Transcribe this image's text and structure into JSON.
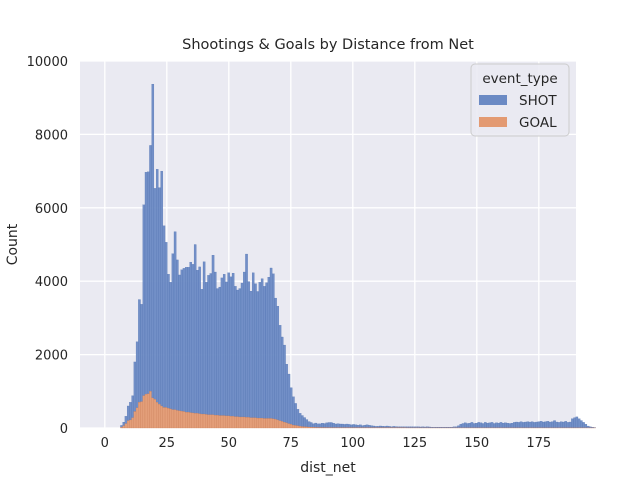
{
  "chart_data": {
    "type": "histogram",
    "title": "Shootings & Goals by Distance from Net",
    "xlabel": "dist_net",
    "ylabel": "Count",
    "xlim": [
      -10,
      190
    ],
    "ylim": [
      0,
      10000
    ],
    "xticks": [
      0,
      25,
      50,
      75,
      100,
      125,
      150,
      175
    ],
    "yticks": [
      0,
      2000,
      4000,
      6000,
      8000,
      10000
    ],
    "grid": true,
    "stacked": true,
    "legend": {
      "title": "event_type",
      "position": "top-right"
    },
    "colors": {
      "SHOT": "#6b8ac4",
      "GOAL": "#e39a72",
      "background": "#eaeaf2",
      "grid": "#ffffff"
    },
    "bin_width": 0.9,
    "bin_start": 0,
    "series": [
      {
        "name": "SHOT",
        "values": [
          0,
          0,
          0,
          0,
          0,
          0,
          0,
          50,
          100,
          200,
          400,
          480,
          600,
          1350,
          1800,
          2800,
          2650,
          5200,
          6050,
          6050,
          6700,
          8550,
          5750,
          6350,
          5900,
          6400,
          4950,
          4500,
          3650,
          3450,
          4250,
          4850,
          4100,
          3700,
          3850,
          3900,
          3950,
          3950,
          4100,
          4050,
          4600,
          3900,
          4000,
          3400,
          4150,
          3600,
          3800,
          3850,
          4350,
          3900,
          3450,
          3500,
          3750,
          3850,
          3650,
          3900,
          3800,
          3900,
          3550,
          3450,
          3500,
          3650,
          3950,
          4450,
          3700,
          3450,
          3950,
          3650,
          3450,
          3700,
          3800,
          3600,
          3700,
          3850,
          4100,
          3950,
          3300,
          3100,
          2600,
          2300,
          2100,
          1600,
          1350,
          1000,
          770,
          600,
          450,
          350,
          300,
          250,
          200,
          150,
          130,
          100,
          120,
          100,
          100,
          120,
          110,
          130,
          140,
          140,
          120,
          100,
          110,
          100,
          100,
          90,
          100,
          90,
          80,
          90,
          80,
          70,
          80,
          60,
          70,
          80,
          70,
          60,
          50,
          40,
          40,
          50,
          45,
          40,
          50,
          40,
          30,
          40,
          35,
          30,
          30,
          30,
          30,
          30,
          30,
          30,
          30,
          30,
          30,
          25,
          30,
          25,
          30,
          25,
          20,
          20,
          20,
          20,
          20,
          20,
          20,
          20,
          20,
          20,
          30,
          30,
          60,
          100,
          120,
          140,
          120,
          130,
          150,
          120,
          130,
          150,
          140,
          120,
          150,
          130,
          140,
          150,
          120,
          140,
          130,
          150,
          130,
          140,
          130,
          120,
          130,
          150,
          160,
          150,
          170,
          150,
          160,
          170,
          160,
          170,
          150,
          160,
          170,
          180,
          160,
          170,
          180,
          160,
          170,
          200,
          160,
          150,
          170,
          160,
          180,
          150,
          160,
          250,
          280,
          300,
          250,
          200,
          150,
          100,
          50,
          30,
          20,
          10
        ]
      },
      {
        "name": "GOAL",
        "values": [
          0,
          0,
          0,
          0,
          0,
          0,
          0,
          20,
          60,
          120,
          200,
          220,
          280,
          450,
          550,
          700,
          720,
          880,
          920,
          930,
          1000,
          820,
          780,
          700,
          650,
          600,
          560,
          560,
          540,
          520,
          500,
          500,
          480,
          470,
          460,
          450,
          430,
          430,
          420,
          410,
          400,
          400,
          390,
          380,
          380,
          370,
          360,
          360,
          360,
          350,
          350,
          340,
          340,
          340,
          330,
          330,
          320,
          320,
          310,
          310,
          300,
          300,
          300,
          290,
          290,
          280,
          280,
          280,
          270,
          270,
          270,
          260,
          260,
          260,
          260,
          250,
          240,
          220,
          200,
          180,
          160,
          140,
          120,
          100,
          80,
          70,
          60,
          50,
          40,
          35,
          30,
          25,
          20,
          18,
          15,
          14,
          13,
          12,
          12,
          11,
          10,
          10,
          10,
          10,
          9,
          9,
          8,
          8,
          8,
          8,
          7,
          7,
          7,
          7,
          6,
          6,
          6,
          6,
          5,
          5,
          5,
          5,
          5,
          5,
          5,
          4,
          4,
          4,
          4,
          4,
          4,
          4,
          4,
          4,
          4,
          3,
          3,
          3,
          3,
          3,
          3,
          3,
          3,
          3,
          3,
          3,
          3,
          3,
          3,
          3,
          3,
          3,
          3,
          3,
          3,
          3,
          3,
          3,
          3,
          3,
          3,
          3,
          3,
          3,
          3,
          3,
          3,
          3,
          3,
          3,
          3,
          3,
          3,
          3,
          3,
          3,
          3,
          3,
          3,
          3,
          3,
          3,
          3,
          3,
          3,
          3,
          3,
          3,
          3,
          3,
          3,
          3,
          3,
          3,
          3,
          3,
          3,
          3,
          3,
          3,
          3,
          3,
          3,
          3,
          3,
          3,
          3,
          3,
          3,
          3,
          3,
          3,
          3,
          3,
          3,
          3,
          3,
          3,
          3,
          3,
          3,
          3,
          3,
          3,
          3
        ]
      }
    ]
  }
}
